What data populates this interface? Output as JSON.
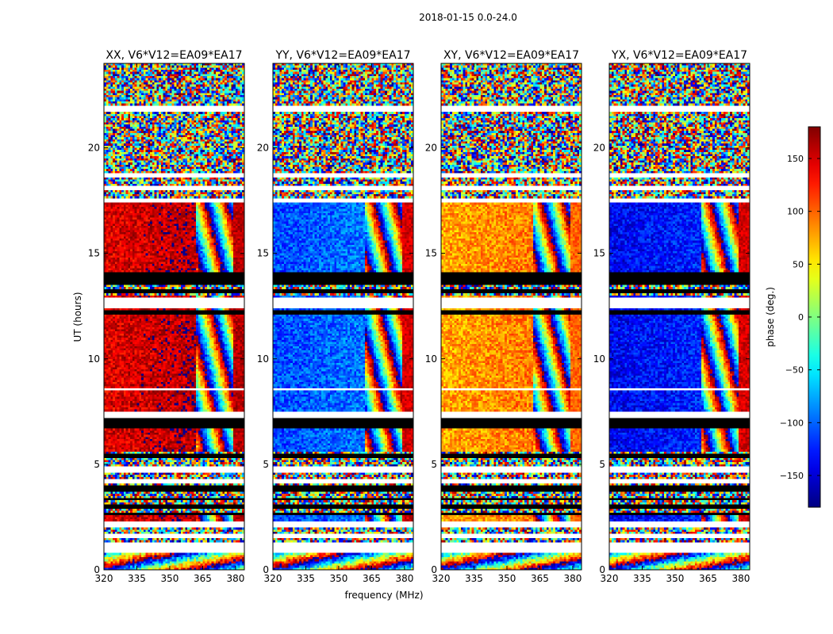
{
  "figure": {
    "suptitle": "2018-01-15 0.0-24.0"
  },
  "chart_data": {
    "type": "heatmap",
    "xlabel": "frequency (MHz)",
    "ylabel": "UT (hours)",
    "xlim": [
      320,
      384
    ],
    "ylim": [
      0,
      24
    ],
    "xticks": [
      320,
      335,
      350,
      365,
      380
    ],
    "yticks": [
      0,
      5,
      10,
      15,
      20
    ],
    "colormap": "jet",
    "colorbar": {
      "label": "phase (deg.)",
      "range": [
        -180,
        180
      ],
      "ticks": [
        -150,
        -100,
        -50,
        0,
        50,
        100,
        150
      ],
      "tick_labels": [
        "−150",
        "−100",
        "−50",
        "0",
        "50",
        "100",
        "150"
      ]
    },
    "flag_bands_hours": [
      [
        1.45,
        1.65
      ],
      [
        0.8,
        1.3
      ],
      [
        2.0,
        2.3
      ],
      [
        4.1,
        4.3
      ],
      [
        4.6,
        4.85
      ],
      [
        7.25,
        7.5
      ],
      [
        8.5,
        8.6
      ],
      [
        12.4,
        12.9
      ],
      [
        17.4,
        17.6
      ],
      [
        18.0,
        18.2
      ],
      [
        18.6,
        18.8
      ],
      [
        21.7,
        22.0
      ]
    ],
    "black_bands_hours": [
      [
        2.6,
        2.7
      ],
      [
        2.9,
        3.1
      ],
      [
        3.3,
        3.45
      ],
      [
        3.7,
        4.0
      ],
      [
        5.3,
        5.45
      ],
      [
        6.7,
        7.2
      ],
      [
        13.1,
        13.3
      ],
      [
        13.5,
        14.1
      ],
      [
        12.1,
        12.3
      ]
    ],
    "panels": [
      {
        "title": "XX, V6*V12=EA09*EA17",
        "phase_coherent": 145,
        "phase_transition": 0,
        "edge_phase": 160
      },
      {
        "title": "YY, V6*V12=EA09*EA17",
        "phase_coherent": -110,
        "phase_transition": -20,
        "edge_phase": 150
      },
      {
        "title": "XY, V6*V12=EA09*EA17",
        "phase_coherent": 75,
        "phase_transition": 20,
        "edge_phase": 100
      },
      {
        "title": "YX, V6*V12=EA09*EA17",
        "phase_coherent": -140,
        "phase_transition": 150,
        "edge_phase": 150
      }
    ]
  }
}
